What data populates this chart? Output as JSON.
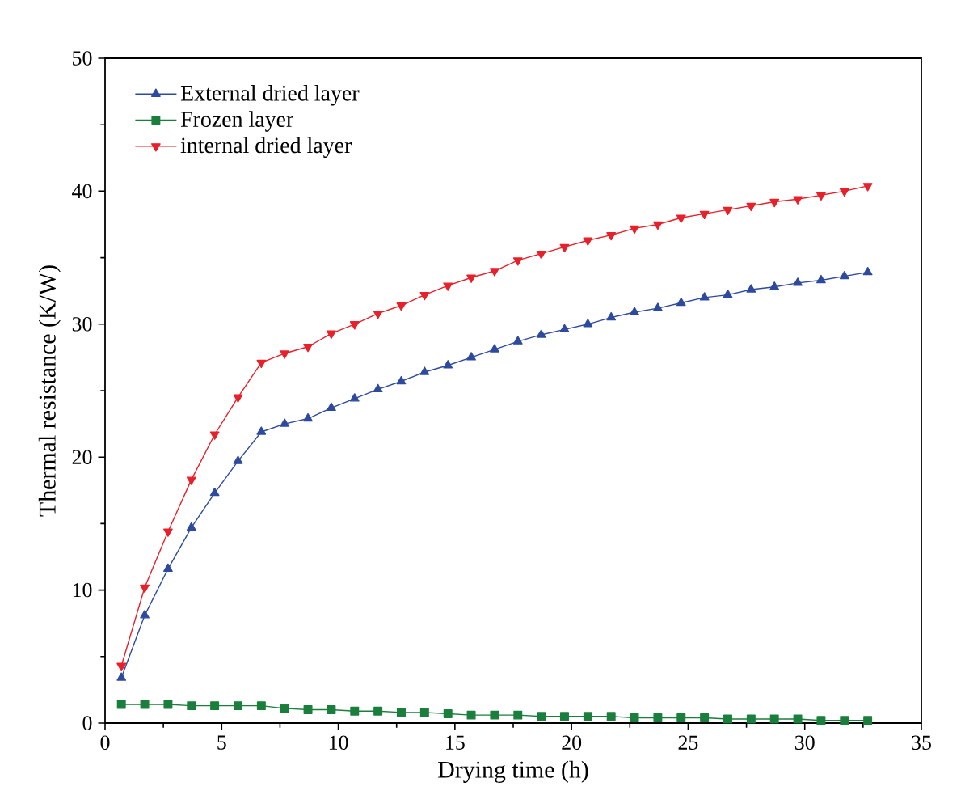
{
  "chart_data": {
    "type": "line",
    "xlabel": "Drying time (h)",
    "ylabel": "Thermal resistance (K/W)",
    "x": [
      0.7,
      1.7,
      2.7,
      3.7,
      4.7,
      5.7,
      6.7,
      7.7,
      8.7,
      9.7,
      10.7,
      11.7,
      12.7,
      13.7,
      14.7,
      15.7,
      16.7,
      17.7,
      18.7,
      19.7,
      20.7,
      21.7,
      22.7,
      23.7,
      24.7,
      25.7,
      26.7,
      27.7,
      28.7,
      29.7,
      30.7,
      31.7,
      32.7
    ],
    "series": [
      {
        "name": "External dried layer",
        "color": "#2e4a9e",
        "marker": "triangle",
        "values": [
          3.4,
          8.1,
          11.6,
          14.7,
          17.3,
          19.7,
          21.9,
          22.5,
          22.9,
          23.7,
          24.4,
          25.1,
          25.7,
          26.4,
          26.9,
          27.5,
          28.1,
          28.7,
          29.2,
          29.6,
          30.0,
          30.5,
          30.9,
          31.2,
          31.6,
          32.0,
          32.2,
          32.6,
          32.8,
          33.1,
          33.3,
          33.6,
          33.9
        ]
      },
      {
        "name": "Frozen layer",
        "color": "#1a7f3c",
        "marker": "square",
        "values": [
          1.4,
          1.4,
          1.4,
          1.3,
          1.3,
          1.3,
          1.3,
          1.1,
          1.0,
          1.0,
          0.9,
          0.9,
          0.8,
          0.8,
          0.7,
          0.6,
          0.6,
          0.6,
          0.5,
          0.5,
          0.5,
          0.5,
          0.4,
          0.4,
          0.4,
          0.4,
          0.3,
          0.3,
          0.3,
          0.3,
          0.2,
          0.2,
          0.2
        ]
      },
      {
        "name": "internal dried layer",
        "color": "#e8202a",
        "marker": "triangle down",
        "values": [
          4.3,
          10.2,
          14.4,
          18.3,
          21.7,
          24.5,
          27.1,
          27.8,
          28.3,
          29.3,
          30.0,
          30.8,
          31.4,
          32.2,
          32.9,
          33.5,
          34.0,
          34.8,
          35.3,
          35.8,
          36.3,
          36.7,
          37.2,
          37.5,
          38.0,
          38.3,
          38.6,
          38.9,
          39.2,
          39.4,
          39.7,
          40.0,
          40.4
        ]
      }
    ],
    "xlim": [
      0,
      35
    ],
    "ylim": [
      0,
      50
    ],
    "xticks": [
      0,
      5,
      10,
      15,
      20,
      25,
      30,
      35
    ],
    "yticks": [
      0,
      10,
      20,
      30,
      40,
      50
    ],
    "legend": "top left",
    "grid": false,
    "line_style": "solid"
  }
}
